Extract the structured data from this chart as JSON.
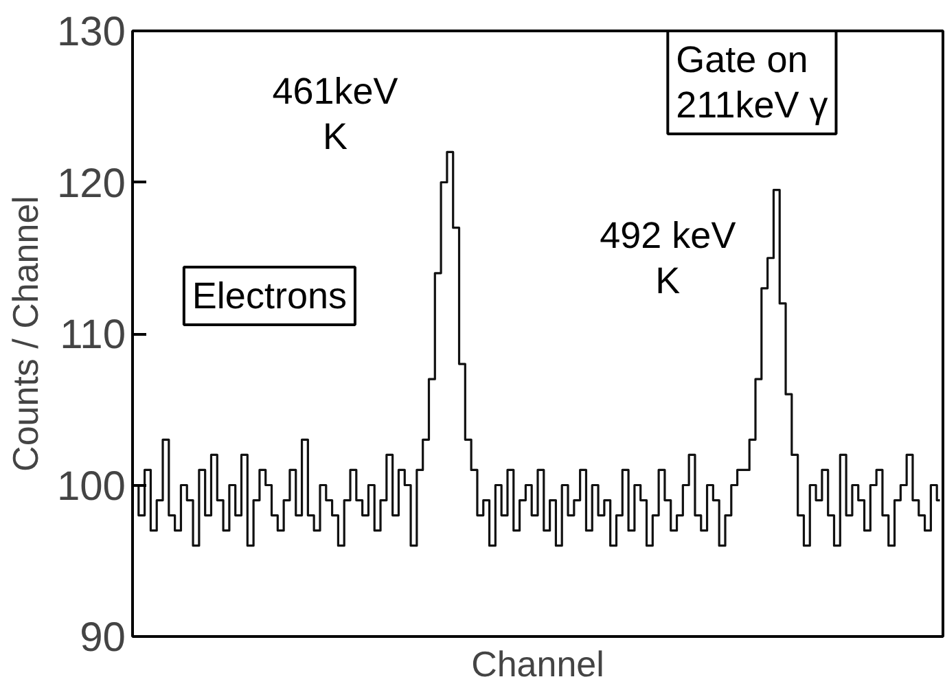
{
  "chart_data": {
    "type": "step",
    "xlabel": "Channel",
    "ylabel": "Counts / Channel",
    "categories": [
      null,
      null,
      null,
      null,
      null,
      null,
      null,
      null,
      null,
      null,
      null,
      null,
      null,
      null,
      null,
      null,
      null,
      null,
      null,
      null,
      null,
      null,
      null,
      null,
      null,
      null,
      null,
      null,
      null,
      null,
      null,
      null,
      null,
      null,
      null,
      null,
      null,
      null,
      null,
      null,
      null,
      null,
      null,
      null,
      null,
      null,
      null,
      null,
      null,
      null,
      null,
      null,
      null,
      null,
      null,
      null,
      null,
      null,
      null,
      null,
      null,
      null,
      null,
      null,
      null,
      null,
      null,
      null,
      null,
      null,
      null,
      null,
      null,
      null,
      null,
      null,
      null,
      null,
      null,
      null,
      null,
      null,
      null,
      null,
      null,
      null,
      null,
      null,
      null,
      null,
      null,
      null,
      null,
      null,
      null,
      null,
      null,
      null,
      null,
      null,
      null,
      null,
      null,
      null,
      null,
      null,
      null,
      null,
      null,
      null,
      null,
      null,
      null,
      null,
      null,
      null,
      null,
      null,
      null,
      null,
      null,
      null,
      null,
      null,
      null,
      null,
      null,
      null,
      null,
      null,
      null,
      null,
      null,
      null
    ],
    "series": [
      {
        "color": "#111111",
        "values": [
          100,
          98,
          101,
          97,
          99,
          103,
          98,
          97,
          100,
          99,
          96,
          101,
          98,
          102,
          99,
          97,
          100,
          98,
          102,
          96,
          99,
          101,
          100,
          98,
          97,
          99,
          101,
          98,
          103,
          98,
          97,
          100,
          99,
          98,
          96,
          99,
          101,
          99,
          98,
          100,
          97,
          99,
          102,
          98,
          101,
          100,
          96,
          101,
          103,
          107,
          114,
          120,
          122,
          117,
          108,
          103,
          101,
          98,
          99,
          96,
          100,
          98,
          101,
          97,
          99,
          100,
          98,
          101,
          97,
          99,
          96,
          100,
          98,
          99,
          101,
          97,
          100,
          98,
          99,
          96,
          98,
          101,
          97,
          100,
          99,
          96,
          98,
          101,
          99,
          97,
          98,
          100,
          102,
          98,
          97,
          100,
          99,
          96,
          98,
          100,
          101,
          101,
          103,
          107,
          113,
          115,
          119.5,
          112,
          106,
          102,
          98,
          96,
          100,
          99,
          101,
          98,
          96,
          102,
          98,
          100,
          99,
          97,
          100,
          101,
          98,
          96,
          99,
          100,
          102,
          99,
          98,
          97,
          100,
          99
        ]
      }
    ],
    "ylim": [
      90,
      130
    ],
    "yticks": [
      90,
      100,
      110,
      120,
      130
    ],
    "tick_labels": "y",
    "grid": false,
    "annotations": [
      "461keV\nK",
      "492 keV\nK",
      "Electrons",
      "Gate on\n211keV γ"
    ]
  }
}
